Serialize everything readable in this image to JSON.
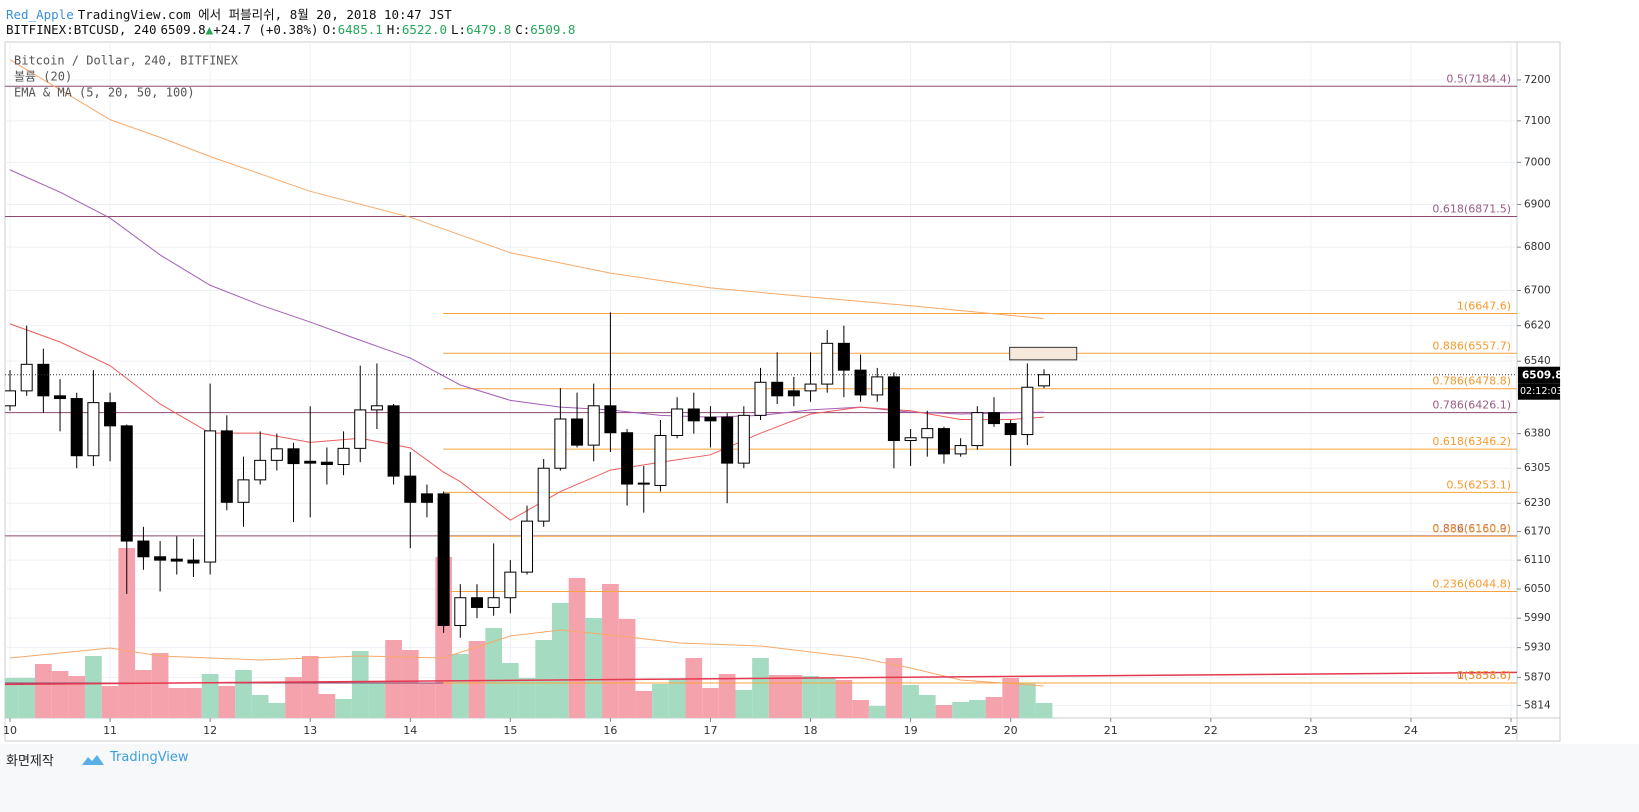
{
  "chart_data": {
    "type": "candlestick",
    "header": {
      "author": "Red_Apple",
      "published": "TradingView.com 에서 퍼블리쉬, 8월 20, 2018 10:47 JST",
      "symbol": "BITFINEX:BTCUSD, 240",
      "price": "6509.8",
      "change": "+24.7 (+0.38%)",
      "ohlc": [
        {
          "key": "O:",
          "value": "6485.1"
        },
        {
          "key": "H:",
          "value": "6522.0"
        },
        {
          "key": "L:",
          "value": "6479.8"
        },
        {
          "key": "C:",
          "value": "6509.8"
        }
      ]
    },
    "legend": [
      "Bitcoin / Dollar, 240, BITFINEX",
      "볼륨 (20)",
      "EMA & MA (5, 20, 50, 100)"
    ],
    "footer": {
      "made_with": "화면제작",
      "brand": "TradingView"
    },
    "log_scale": true,
    "grid": true,
    "xlim": [
      9.95,
      25.06
    ],
    "xticks": [
      10,
      11,
      12,
      13,
      14,
      15,
      16,
      17,
      18,
      19,
      20,
      21,
      22,
      23,
      24,
      25
    ],
    "ylim": [
      5789,
      7294
    ],
    "yticks": [
      7200,
      7100,
      7000,
      6900,
      6800,
      6700,
      6620,
      6540,
      6380,
      6305,
      6230,
      6170,
      6110,
      6050,
      5990,
      5930,
      5870,
      5814
    ],
    "volume_lim": [
      0,
      170
    ],
    "up_color": "#ffffff",
    "down_color": "#000000",
    "volume_up_color": "#a5dbc1",
    "volume_down_color": "#f4a3ac",
    "candles": {
      "x": [
        10,
        10.1667,
        10.3333,
        10.5,
        10.6667,
        10.8333,
        11,
        11.1667,
        11.3333,
        11.5,
        11.6667,
        11.8333,
        12,
        12.1667,
        12.3333,
        12.5,
        12.6667,
        12.8333,
        13,
        13.1667,
        13.3333,
        13.5,
        13.6667,
        13.8333,
        14,
        14.1667,
        14.3333,
        14.5,
        14.6667,
        14.8333,
        15,
        15.1667,
        15.3333,
        15.5,
        15.6667,
        15.8333,
        16,
        16.1667,
        16.3333,
        16.5,
        16.6667,
        16.8333,
        17,
        17.1667,
        17.3333,
        17.5,
        17.6667,
        17.8333,
        18,
        18.1667,
        18.3333,
        18.5,
        18.6667,
        18.8333,
        19,
        19.1667,
        19.3333,
        19.5,
        19.6667,
        19.8333,
        20,
        20.1667,
        20.3333
      ],
      "open": [
        6441,
        6474,
        6533,
        6463,
        6457,
        6332,
        6448,
        6397,
        6150,
        6117,
        6112,
        6110,
        6106,
        6386,
        6232,
        6280,
        6322,
        6347,
        6320,
        6318,
        6313,
        6348,
        6432,
        6441,
        6288,
        6250,
        6250,
        5975,
        6032,
        6012,
        6032,
        6085,
        6192,
        6305,
        6412,
        6355,
        6441,
        6382,
        6273,
        6268,
        6376,
        6434,
        6416,
        6416,
        6316,
        6420,
        6493,
        6474,
        6474,
        6489,
        6580,
        6520,
        6465,
        6505,
        6365,
        6371,
        6391,
        6336,
        6354,
        6426,
        6402,
        6378,
        6485.1
      ],
      "high": [
        6520,
        6620,
        6568,
        6500,
        6470,
        6520,
        6470,
        6400,
        6180,
        6150,
        6160,
        6155,
        6490,
        6420,
        6330,
        6385,
        6380,
        6360,
        6440,
        6350,
        6385,
        6530,
        6535,
        6445,
        6340,
        6270,
        6255,
        6060,
        6060,
        6145,
        6110,
        6225,
        6325,
        6480,
        6470,
        6490,
        6650,
        6390,
        6310,
        6410,
        6460,
        6470,
        6440,
        6425,
        6440,
        6525,
        6560,
        6505,
        6560,
        6610,
        6620,
        6555,
        6525,
        6515,
        6390,
        6430,
        6395,
        6370,
        6440,
        6460,
        6410,
        6535,
        6522.0
      ],
      "low": [
        6430,
        6463,
        6426,
        6385,
        6305,
        6310,
        6320,
        6040,
        6090,
        6045,
        6080,
        6075,
        6080,
        6215,
        6180,
        6270,
        6300,
        6190,
        6200,
        6270,
        6290,
        6318,
        6390,
        6270,
        6135,
        6200,
        5960,
        5950,
        5990,
        5995,
        6000,
        6080,
        6180,
        6300,
        6350,
        6320,
        6340,
        6225,
        6210,
        6255,
        6370,
        6380,
        6350,
        6230,
        6305,
        6410,
        6445,
        6440,
        6450,
        6470,
        6460,
        6450,
        6450,
        6305,
        6310,
        6330,
        6315,
        6330,
        6345,
        6395,
        6310,
        6355,
        6479.8
      ],
      "close": [
        6474,
        6533,
        6463,
        6457,
        6332,
        6448,
        6397,
        6150,
        6117,
        6110,
        6108,
        6104,
        6386,
        6232,
        6280,
        6322,
        6347,
        6315,
        6316,
        6313,
        6348,
        6432,
        6441,
        6288,
        6232,
        6232,
        5975,
        6032,
        6012,
        6032,
        6085,
        6192,
        6305,
        6412,
        6355,
        6441,
        6382,
        6271,
        6271,
        6376,
        6434,
        6408,
        6408,
        6316,
        6420,
        6493,
        6463,
        6463,
        6489,
        6580,
        6520,
        6465,
        6505,
        6365,
        6371,
        6391,
        6336,
        6354,
        6426,
        6402,
        6378,
        6482,
        6509.8
      ],
      "volume": [
        40,
        40,
        54,
        47,
        42,
        62,
        32,
        170,
        48,
        65,
        30,
        30,
        44,
        32,
        48,
        23,
        15,
        41,
        62,
        24,
        19,
        67,
        37,
        78,
        68,
        35,
        161,
        64,
        77,
        90,
        55,
        40,
        78,
        115,
        140,
        100,
        134,
        99,
        27,
        34,
        39,
        60,
        30,
        44,
        28,
        60,
        43,
        43,
        42,
        40,
        38,
        18,
        12,
        60,
        33,
        23,
        13,
        16,
        18,
        21,
        40,
        35,
        15
      ]
    },
    "ma_lines": [
      {
        "color": "#f7a96a",
        "x": [
          10,
          10.5,
          11,
          11.5,
          12,
          13,
          14,
          15,
          16,
          17,
          18,
          19,
          20.33
        ],
        "values": [
          7250,
          7176,
          7103,
          7060,
          7014,
          6931,
          6870,
          6787,
          6740,
          6706,
          6685,
          6665,
          6636
        ]
      },
      {
        "color": "#a45db8",
        "x": [
          10,
          10.5,
          11,
          11.5,
          12,
          12.5,
          13,
          13.5,
          14,
          14.5,
          15,
          15.5,
          16,
          16.5,
          17,
          17.5,
          18,
          18.5,
          19,
          19.5,
          20.33
        ],
        "values": [
          6982,
          6929,
          6868,
          6782,
          6712,
          6667,
          6628,
          6587,
          6547,
          6487,
          6453,
          6438,
          6432,
          6420,
          6416,
          6420,
          6432,
          6438,
          6427,
          6423,
          6427
        ]
      },
      {
        "color": "#ef5b5b",
        "x": [
          10,
          10.5,
          11,
          11.5,
          12,
          12.5,
          13,
          13.5,
          14,
          14.33,
          14.5,
          15,
          15.5,
          16,
          16.5,
          17,
          17.5,
          18,
          18.5,
          19,
          19.5,
          20,
          20.33
        ],
        "values": [
          6624,
          6583,
          6530,
          6445,
          6381,
          6381,
          6361,
          6370,
          6349,
          6297,
          6276,
          6194,
          6255,
          6301,
          6318,
          6334,
          6381,
          6423,
          6438,
          6430,
          6411,
          6411,
          6416
        ]
      }
    ],
    "volume_ma": {
      "color": "#f7a96a",
      "x": [
        10,
        11,
        11.5,
        12.5,
        13.5,
        14.33,
        15,
        15.5,
        16,
        16.7,
        17.5,
        18.5,
        19,
        19.5,
        20.33
      ],
      "values": [
        60,
        70,
        62,
        58,
        62,
        60,
        82,
        88,
        83,
        75,
        72,
        60,
        50,
        38,
        32
      ]
    },
    "fib_purple": {
      "color": "#8e4a72",
      "label_color": "#9c5c84",
      "levels": [
        {
          "value": 7184.4,
          "label": "0.5(7184.4)"
        },
        {
          "value": 6871.5,
          "label": "0.618(6871.5)"
        },
        {
          "value": 6426.1,
          "label": "0.786(6426.1)"
        },
        {
          "value": 6160.9,
          "label": "0.886(6160.9)"
        },
        {
          "value": 5858.6,
          "label": "1(5858.6)"
        }
      ]
    },
    "fib_orange": {
      "color": "#f7a43c",
      "label_color": "#f59a2c",
      "x_start": 14.33,
      "levels": [
        {
          "value": 5858.6,
          "label": "0(5858.6)"
        },
        {
          "value": 6044.8,
          "label": "0.236(6044.8)"
        },
        {
          "value": 6160.0,
          "label": "0.382(6160.0)"
        },
        {
          "value": 6253.1,
          "label": "0.5(6253.1)"
        },
        {
          "value": 6346.2,
          "label": "0.618(6346.2)"
        },
        {
          "value": 6478.8,
          "label": "0.786(6478.8)"
        },
        {
          "value": 6557.7,
          "label": "0.886(6557.7)"
        },
        {
          "value": 6647.6,
          "label": "1(6647.6)"
        }
      ]
    },
    "trendline": {
      "color": "#e53950",
      "x": [
        9.95,
        25.06
      ],
      "values": [
        5856,
        5880
      ]
    },
    "box": {
      "x": [
        19.99,
        20.66
      ],
      "values": [
        6543,
        6571
      ],
      "fill": "#f6e8da",
      "stroke": "#333333"
    },
    "last_price": 6509.8,
    "countdown": "02:12:03"
  }
}
